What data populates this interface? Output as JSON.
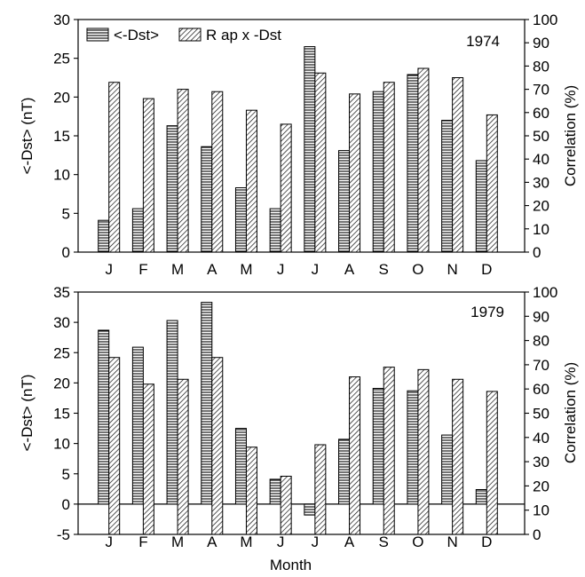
{
  "chart_data": [
    {
      "type": "bar",
      "year_label": "1974",
      "categories": [
        "J",
        "F",
        "M",
        "A",
        "M",
        "J",
        "J",
        "A",
        "S",
        "O",
        "N",
        "D"
      ],
      "xlabel": "",
      "ylabel_left": "<-Dst> (nT)",
      "ylabel_right": "Correlation (%)",
      "ylim_left": [
        0,
        30
      ],
      "yticks_left": [
        "0",
        "5",
        "10",
        "15",
        "20",
        "25",
        "30"
      ],
      "ylim_right": [
        0,
        100
      ],
      "yticks_right": [
        "0",
        "10",
        "20",
        "30",
        "40",
        "50",
        "60",
        "70",
        "80",
        "90",
        "100"
      ],
      "legend_position": "top-left",
      "series": [
        {
          "name": "<-Dst>",
          "axis": "left",
          "pattern": "horizontal-lines",
          "values": [
            4.1,
            5.6,
            16.3,
            13.6,
            8.3,
            5.6,
            26.5,
            13.1,
            20.7,
            22.9,
            17.0,
            11.8
          ]
        },
        {
          "name": "R ap x -Dst",
          "axis": "right",
          "pattern": "diagonal-hatch",
          "values": [
            73,
            66,
            70,
            69,
            61,
            55,
            77,
            68,
            73,
            79,
            75,
            59
          ]
        }
      ]
    },
    {
      "type": "bar",
      "year_label": "1979",
      "categories": [
        "J",
        "F",
        "M",
        "A",
        "M",
        "J",
        "J",
        "A",
        "S",
        "O",
        "N",
        "D"
      ],
      "xlabel": "Month",
      "ylabel_left": "<-Dst> (nT)",
      "ylabel_right": "Correlation (%)",
      "ylim_left": [
        -5,
        35
      ],
      "yticks_left": [
        "-5",
        "0",
        "5",
        "10",
        "15",
        "20",
        "25",
        "30",
        "35"
      ],
      "ylim_right": [
        0,
        100
      ],
      "yticks_right": [
        "0",
        "10",
        "20",
        "30",
        "40",
        "50",
        "60",
        "70",
        "80",
        "90",
        "100"
      ],
      "series": [
        {
          "name": "<-Dst>",
          "axis": "left",
          "pattern": "horizontal-lines",
          "values": [
            28.7,
            25.9,
            30.3,
            33.3,
            12.5,
            4.1,
            -1.8,
            10.7,
            19.1,
            18.7,
            11.4,
            2.4
          ]
        },
        {
          "name": "R ap x -Dst",
          "axis": "right",
          "pattern": "diagonal-hatch",
          "values": [
            73,
            62,
            64,
            73,
            36,
            24,
            37,
            65,
            69,
            68,
            64,
            59
          ]
        }
      ]
    }
  ]
}
